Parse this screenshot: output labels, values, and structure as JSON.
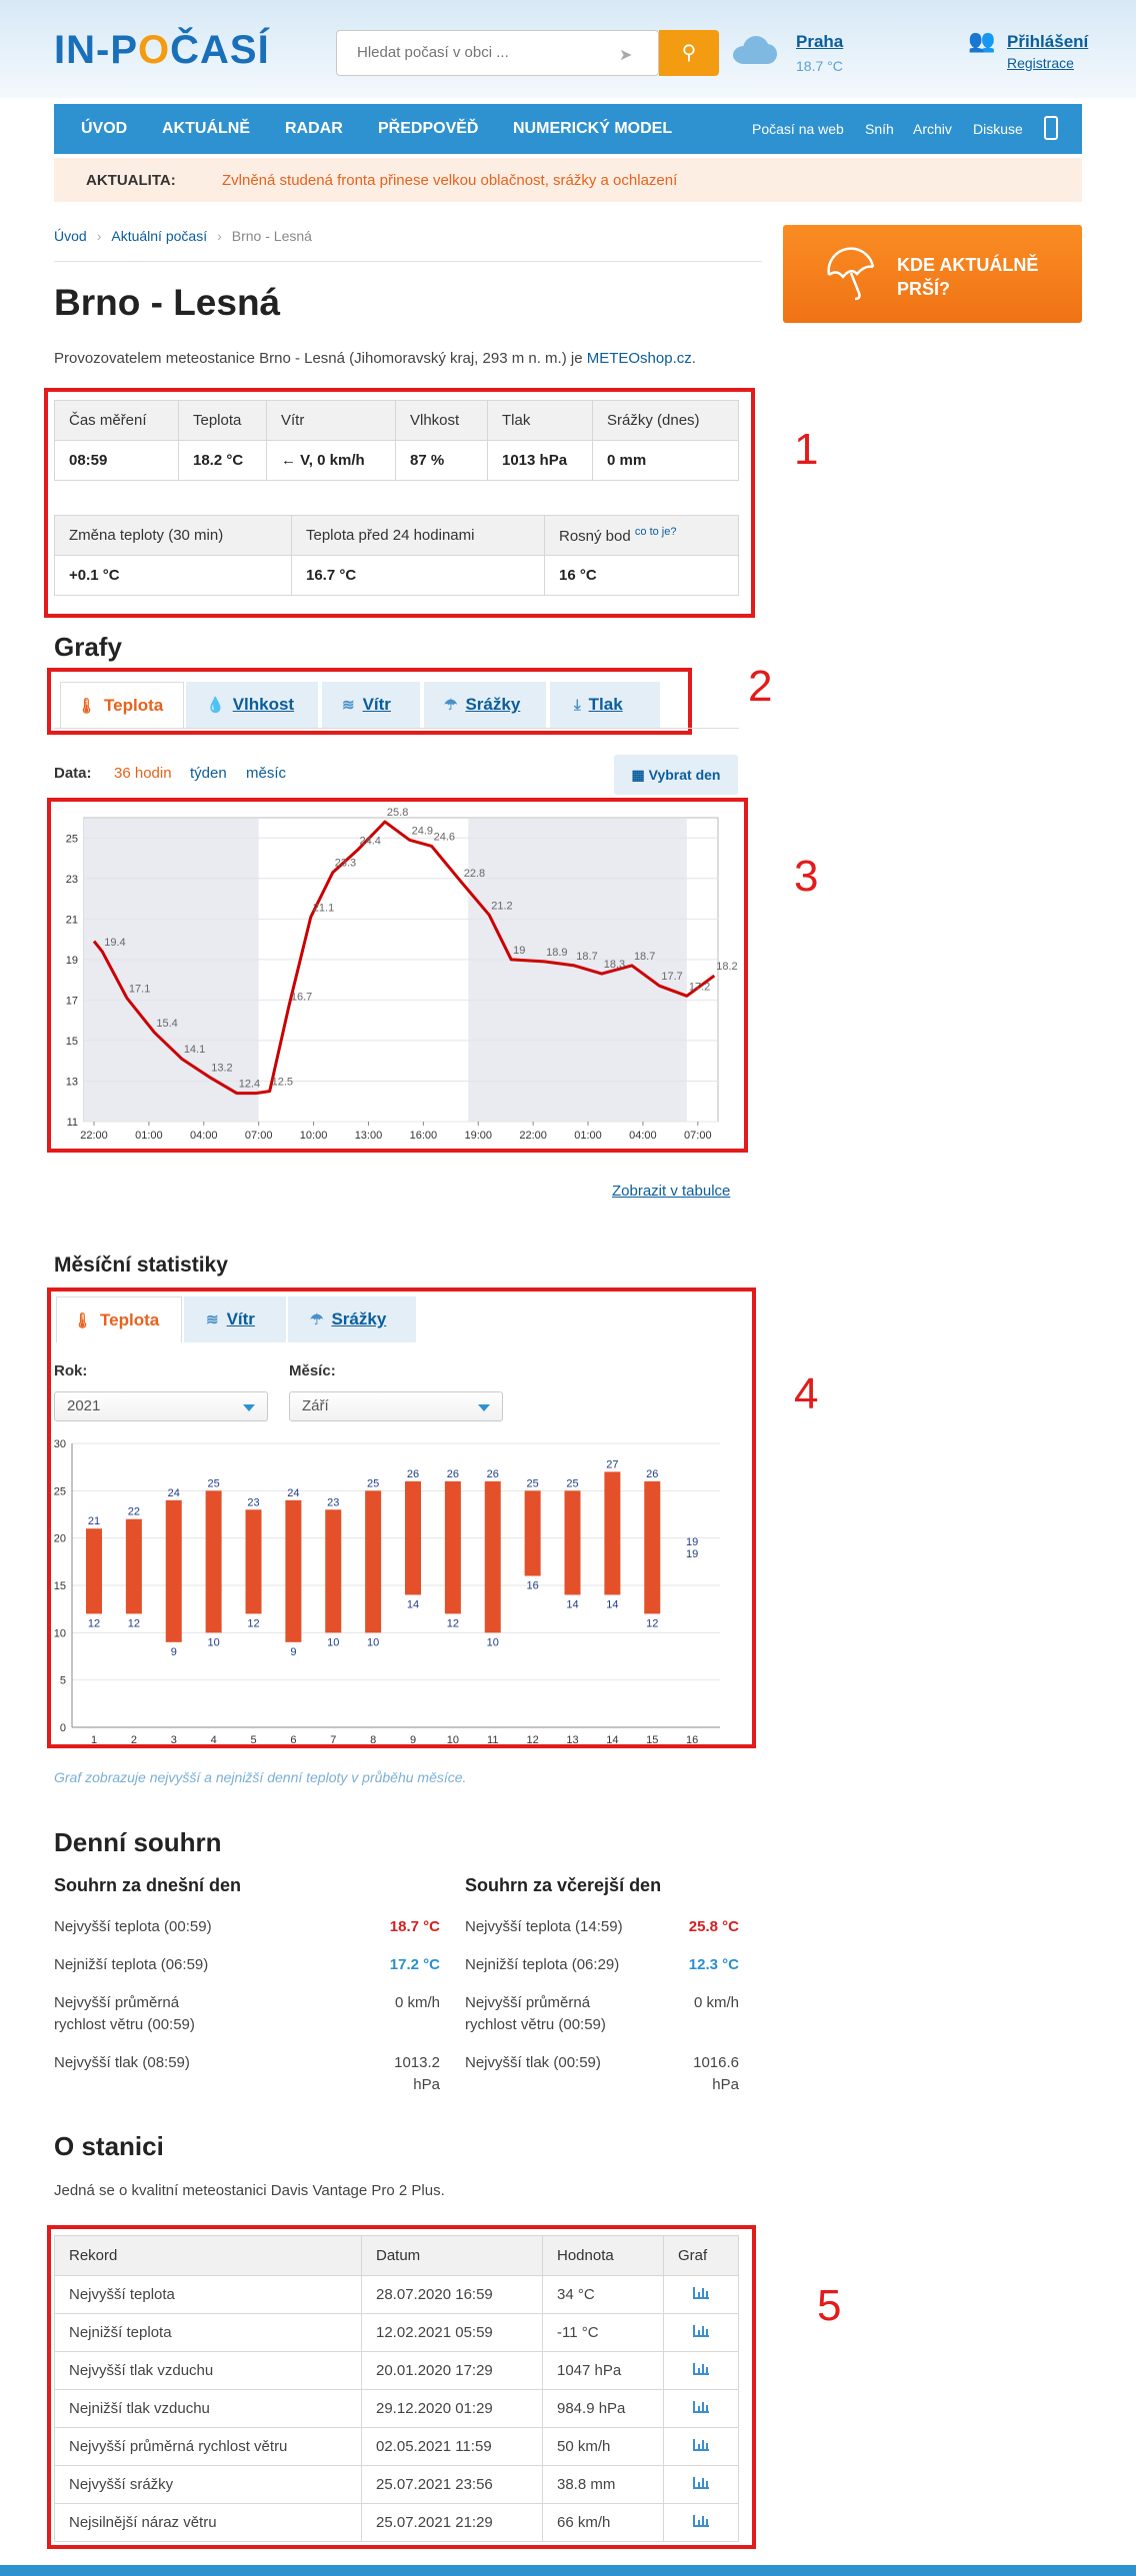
{
  "header": {
    "logo_prefix": "IN-P",
    "logo_o": "O",
    "logo_suffix": "ČASÍ",
    "search_placeholder": "Hledat počasí v obci ...",
    "city": "Praha",
    "city_temp": "18.7 °C",
    "login": "Přihlášení",
    "register": "Registrace"
  },
  "nav": {
    "main": [
      "ÚVOD",
      "AKTUÁLNĚ",
      "RADAR",
      "PŘEDPOVĚĎ",
      "NUMERICKÝ MODEL"
    ],
    "side": [
      "Počasí na web",
      "Sníh",
      "Archiv",
      "Diskuse"
    ]
  },
  "alert": {
    "label": "AKTUALITA:",
    "text": "Zvlněná studená fronta přinese velkou oblačnost, srážky a ochlazení"
  },
  "breadcrumb": [
    "Úvod",
    "Aktuální počasí",
    "Brno - Lesná"
  ],
  "rain_button": "KDE AKTUÁLNĚ PRŠÍ?",
  "title": "Brno - Lesná",
  "operator": {
    "text": "Provozovatelem meteostanice Brno - Lesná (Jihomoravský kraj, 293 m n. m.) je ",
    "link": "METEOshop.cz",
    "end": "."
  },
  "current": {
    "headers1": [
      "Čas měření",
      "Teplota",
      "Vítr",
      "Vlhkost",
      "Tlak",
      "Srážky (dnes)"
    ],
    "values1": [
      "08:59",
      "18.2 °C",
      "V, 0 km/h",
      "87 %",
      "1013 hPa",
      "0 mm"
    ],
    "wind_arrow": "←",
    "headers2": [
      "Změna teploty (30 min)",
      "Teplota před 24 hodinami",
      "Rosný bod"
    ],
    "dew_link": "co to je?",
    "values2": [
      "+0.1 °C",
      "16.7 °C",
      "16 °C"
    ]
  },
  "annotations": [
    "1",
    "2",
    "3",
    "4",
    "5"
  ],
  "grafy": {
    "title": "Grafy",
    "tabs": [
      "Teplota",
      "Vlhkost",
      "Vítr",
      "Srážky",
      "Tlak"
    ],
    "data_label": "Data:",
    "range_active": "36 hodin",
    "range_links": [
      "týden",
      "měsíc"
    ],
    "pick_day": "Vybrat den",
    "show_table": "Zobrazit v tabulce"
  },
  "chart_data": [
    {
      "type": "line",
      "x": [
        "22:00",
        "01:00",
        "04:00",
        "07:00",
        "10:00",
        "13:00",
        "16:00",
        "19:00",
        "22:00",
        "01:00",
        "04:00",
        "07:00"
      ],
      "yticks": [
        11,
        13,
        15,
        17,
        19,
        21,
        23,
        25
      ],
      "ylim": [
        11,
        26
      ],
      "points": [
        [
          0.0,
          19.9,
          ""
        ],
        [
          0.15,
          19.4,
          "19.4"
        ],
        [
          0.6,
          17.1,
          "17.1"
        ],
        [
          1.1,
          15.4,
          "15.4"
        ],
        [
          1.6,
          14.1,
          "14.1"
        ],
        [
          2.1,
          13.2,
          "13.2"
        ],
        [
          2.6,
          12.4,
          "12.4"
        ],
        [
          2.95,
          12.4,
          ""
        ],
        [
          3.2,
          12.5,
          "12.5"
        ],
        [
          3.55,
          16.7,
          "16.7"
        ],
        [
          3.95,
          21.1,
          "21.1"
        ],
        [
          4.35,
          23.3,
          "23.3"
        ],
        [
          4.8,
          24.4,
          "24.4"
        ],
        [
          5.3,
          25.8,
          "25.8"
        ],
        [
          5.75,
          24.9,
          "24.9"
        ],
        [
          6.15,
          24.6,
          "24.6"
        ],
        [
          6.7,
          22.8,
          "22.8"
        ],
        [
          7.2,
          21.2,
          "21.2"
        ],
        [
          7.6,
          19.0,
          "19"
        ],
        [
          8.2,
          18.9,
          "18.9"
        ],
        [
          8.75,
          18.7,
          "18.7"
        ],
        [
          9.25,
          18.3,
          "18.3"
        ],
        [
          9.8,
          18.7,
          "18.7"
        ],
        [
          10.3,
          17.7,
          "17.7"
        ],
        [
          10.8,
          17.2,
          "17.2"
        ],
        [
          11.3,
          18.2,
          "18.2"
        ]
      ],
      "night_bands": [
        [
          0.0,
          3.0
        ],
        [
          7.0,
          10.8
        ]
      ]
    },
    {
      "type": "bar",
      "categories": [
        "1",
        "2",
        "3",
        "4",
        "5",
        "6",
        "7",
        "8",
        "9",
        "10",
        "11",
        "12",
        "13",
        "14",
        "15",
        "16"
      ],
      "yticks": [
        0,
        5,
        10,
        15,
        20,
        25,
        30
      ],
      "ylim": [
        0,
        30
      ],
      "max": [
        21,
        22,
        24,
        25,
        23,
        24,
        23,
        25,
        26,
        26,
        26,
        25,
        25,
        27,
        26,
        19
      ],
      "min": [
        12,
        12,
        9,
        10,
        12,
        9,
        10,
        10,
        14,
        12,
        10,
        16,
        14,
        14,
        12,
        19
      ]
    }
  ],
  "stats": {
    "title": "Měsíční statistiky",
    "tabs": [
      "Teplota",
      "Vítr",
      "Srážky"
    ],
    "year_label": "Rok:",
    "year": "2021",
    "month_label": "Měsíc:",
    "month": "Září",
    "caption": "Graf zobrazuje nejvyšší a nejnižší denní teploty v průběhu měsíce."
  },
  "summary": {
    "title": "Denní souhrn",
    "today": {
      "title": "Souhrn za dnešní den",
      "rows": [
        [
          "Nejvyšší teplota (00:59)",
          "18.7 °C"
        ],
        [
          "Nejnižší teplota (06:59)",
          "17.2 °C"
        ],
        [
          "Nejvyšší průměrná rychlost větru (00:59)",
          "0 km/h"
        ],
        [
          "Nejvyšší tlak (08:59)",
          "1013.2 hPa"
        ]
      ]
    },
    "yesterday": {
      "title": "Souhrn za včerejší den",
      "rows": [
        [
          "Nejvyšší teplota (14:59)",
          "25.8 °C"
        ],
        [
          "Nejnižší teplota (06:29)",
          "12.3 °C"
        ],
        [
          "Nejvyšší průměrná rychlost větru (00:59)",
          "0 km/h"
        ],
        [
          "Nejvyšší tlak (00:59)",
          "1016.6 hPa"
        ]
      ]
    }
  },
  "station": {
    "title": "O stanici",
    "desc": "Jedná se o kvalitní meteostanici Davis Vantage Pro 2 Plus.",
    "headers": [
      "Rekord",
      "Datum",
      "Hodnota",
      "Graf"
    ],
    "rows": [
      [
        "Nejvyšší teplota",
        "28.07.2020 16:59",
        "34 °C"
      ],
      [
        "Nejnižší teplota",
        "12.02.2021 05:59",
        "-11 °C"
      ],
      [
        "Nejvyšší tlak vzduchu",
        "20.01.2020 17:29",
        "1047 hPa"
      ],
      [
        "Nejnižší tlak vzduchu",
        "29.12.2020 01:29",
        "984.9 hPa"
      ],
      [
        "Nejvyšší průměrná rychlost větru",
        "02.05.2021 11:59",
        "50 km/h"
      ],
      [
        "Nejvyšší srážky",
        "25.07.2021 23:56",
        "38.8 mm"
      ],
      [
        "Nejsilnější náraz větru",
        "25.07.2021 21:29",
        "66 km/h"
      ]
    ]
  },
  "colors": {
    "accent": "#2e92d1",
    "orange": "#f39c12",
    "annotation": "#e31b1b",
    "line": "#cc0000",
    "bar": "#e4502a"
  }
}
